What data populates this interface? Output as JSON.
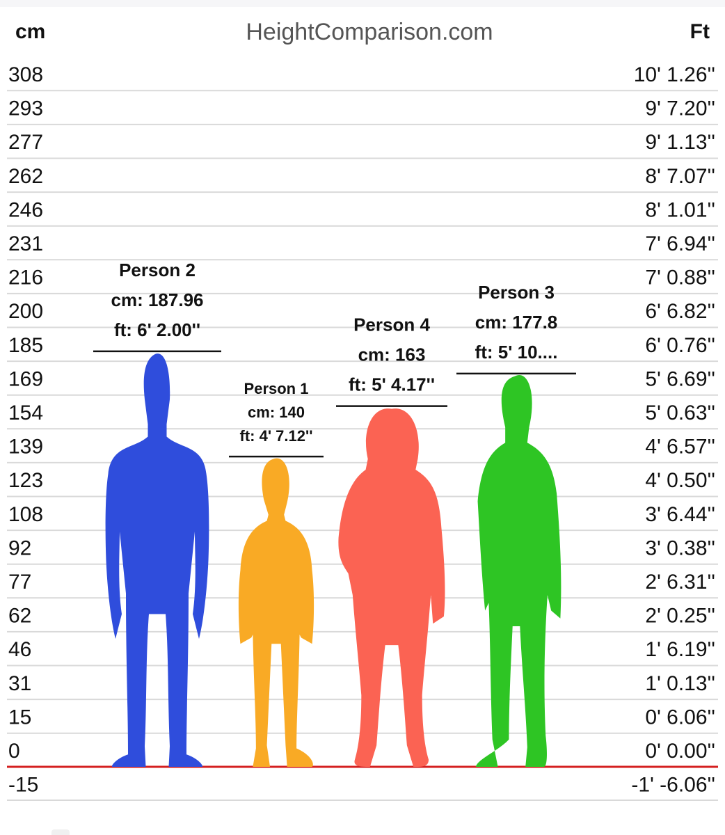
{
  "header": {
    "left_unit": "cm",
    "site_title": "HeightComparison.com",
    "right_unit": "Ft"
  },
  "chart_data": {
    "type": "bar",
    "title": "HeightComparison.com",
    "xlabel": "",
    "ylabel": "cm",
    "ylabel_right": "Ft",
    "ylim": [
      -15,
      308
    ],
    "grid": true,
    "ground_line_color": "#d42020",
    "y_ticks_cm": [
      "308",
      "293",
      "277",
      "262",
      "246",
      "231",
      "216",
      "200",
      "185",
      "169",
      "154",
      "139",
      "123",
      "108",
      "92",
      "77",
      "62",
      "46",
      "31",
      "15",
      "0",
      "-15"
    ],
    "y_ticks_ft": [
      "10' 1.26''",
      "9' 7.20''",
      "9' 1.13''",
      "8' 7.07''",
      "8' 1.01''",
      "7' 6.94''",
      "7' 0.88''",
      "6' 6.82''",
      "6' 0.76''",
      "5' 6.69''",
      "5' 0.63''",
      "4' 6.57''",
      "4' 0.50''",
      "3' 6.44''",
      "3' 0.38''",
      "2' 6.31''",
      "2' 0.25''",
      "1' 6.19''",
      "1' 0.13''",
      "0' 6.06''",
      "0' 0.00''",
      "-1' -6.06''"
    ],
    "categories": [
      "Person 2",
      "Person 1",
      "Person 4",
      "Person 3"
    ],
    "values": [
      187.96,
      140,
      163,
      177.8
    ],
    "series": [
      {
        "name": "Person 2",
        "cm_label": "cm: 187.96",
        "ft_label": "ft: 6' 2.00''",
        "value": 187.96,
        "color": "#2f4ddc",
        "build": "male-slim"
      },
      {
        "name": "Person 1",
        "cm_label": "cm: 140",
        "ft_label": "ft: 4' 7.12''",
        "value": 140,
        "color": "#f9aa25",
        "build": "teen"
      },
      {
        "name": "Person 4",
        "cm_label": "cm: 163",
        "ft_label": "ft: 5' 4.17''",
        "value": 163,
        "color": "#fb6353",
        "build": "hoodie"
      },
      {
        "name": "Person 3",
        "cm_label": "cm: 177.8",
        "ft_label": "ft: 5' 10....",
        "value": 177.8,
        "color": "#2ec524",
        "build": "jacket"
      }
    ]
  }
}
